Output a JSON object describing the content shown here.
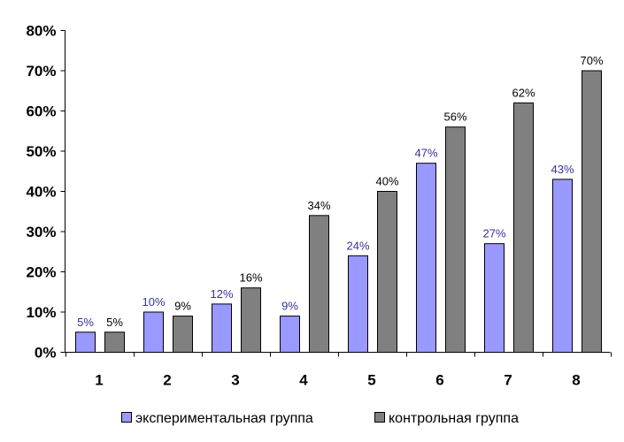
{
  "chart_data": {
    "type": "bar",
    "title": "",
    "xlabel": "",
    "ylabel": "",
    "ylim": [
      0,
      80
    ],
    "yticks": [
      "0%",
      "10%",
      "20%",
      "30%",
      "40%",
      "50%",
      "60%",
      "70%",
      "80%"
    ],
    "categories": [
      "1",
      "2",
      "3",
      "4",
      "5",
      "6",
      "7",
      "8"
    ],
    "series": [
      {
        "name": "экспериментальная группа",
        "color": "#9999FF",
        "label_color": "#333399",
        "values": [
          5,
          10,
          12,
          9,
          24,
          47,
          27,
          43
        ],
        "labels": [
          "5%",
          "10%",
          "12%",
          "9%",
          "24%",
          "47%",
          "27%",
          "43%"
        ]
      },
      {
        "name": "контрольная группа",
        "color": "#808080",
        "label_color": "#000000",
        "values": [
          5,
          9,
          16,
          34,
          40,
          56,
          62,
          70
        ],
        "labels": [
          "5%",
          "9%",
          "16%",
          "34%",
          "40%",
          "56%",
          "62%",
          "70%"
        ]
      }
    ],
    "grid": false,
    "legend": "bottom"
  }
}
